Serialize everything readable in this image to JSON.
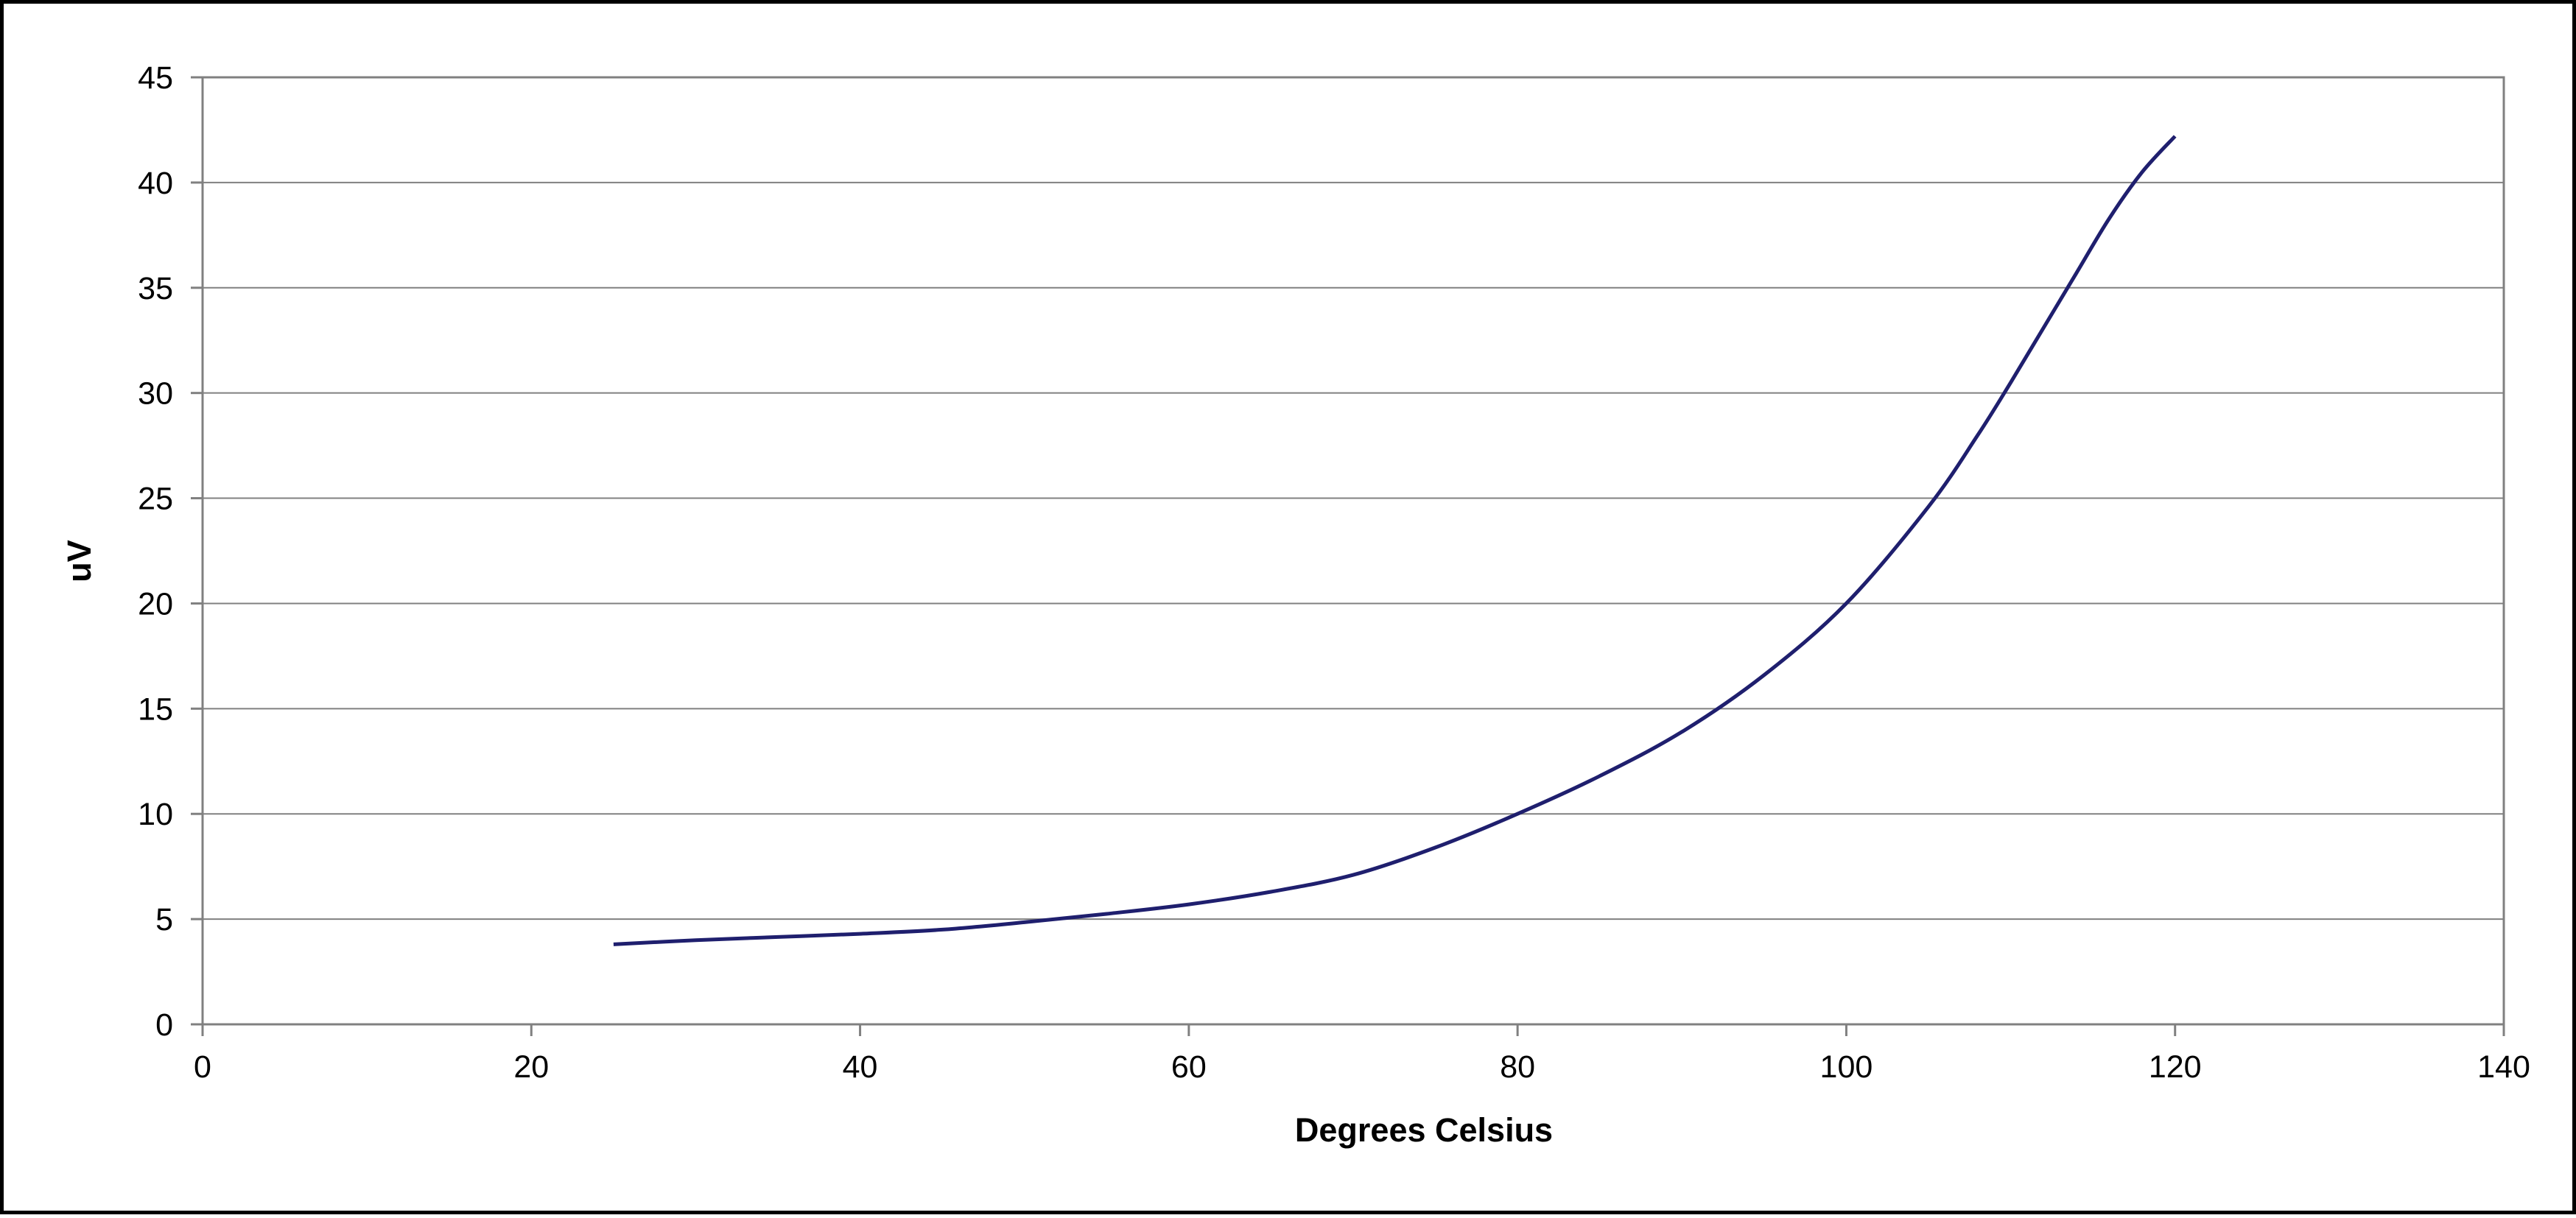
{
  "chart_data": {
    "type": "line",
    "title": "",
    "xlabel": "Degrees Celsius",
    "ylabel": "uV",
    "xlim": [
      0,
      140
    ],
    "ylim": [
      0,
      45
    ],
    "x_ticks": [
      "0",
      "20",
      "40",
      "60",
      "80",
      "100",
      "120",
      "140"
    ],
    "y_ticks": [
      "0",
      "5",
      "10",
      "15",
      "20",
      "25",
      "30",
      "35",
      "40",
      "45"
    ],
    "grid": "horizontal",
    "legend": "none",
    "series": [
      {
        "color": "#1f1f6e",
        "x": [
          25,
          30,
          35,
          40,
          45,
          50,
          55,
          60,
          65,
          70,
          75,
          80,
          85,
          90,
          95,
          100,
          105,
          108,
          110,
          112,
          114,
          116,
          118,
          120
        ],
        "y": [
          3.8,
          4.0,
          4.15,
          4.3,
          4.5,
          4.85,
          5.25,
          5.7,
          6.3,
          7.1,
          8.4,
          10.0,
          11.8,
          13.9,
          16.6,
          20.0,
          24.6,
          28.0,
          30.5,
          33.1,
          35.7,
          38.3,
          40.5,
          42.2
        ]
      }
    ]
  }
}
